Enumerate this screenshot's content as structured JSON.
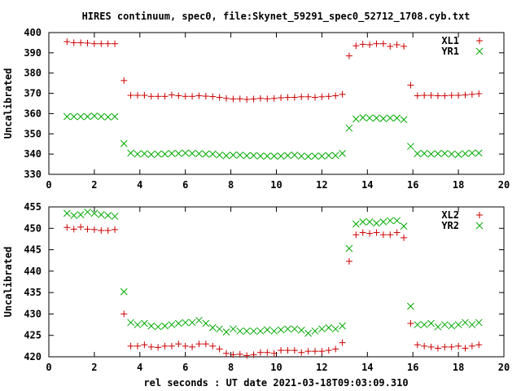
{
  "title": "HIRES continuum, spec0, file:Skynet_59291_spec0_52712_1708.cyb.txt",
  "chart_data": [
    {
      "type": "scatter",
      "ylabel": "Uncalibrated",
      "xlim": [
        0,
        20
      ],
      "ylim": [
        330,
        400
      ],
      "xticks": [
        0,
        2,
        4,
        6,
        8,
        10,
        12,
        14,
        16,
        18,
        20
      ],
      "yticks": [
        330,
        340,
        350,
        360,
        370,
        380,
        390,
        400
      ],
      "legend_position": "top-right",
      "x": [
        0.8,
        1.1,
        1.4,
        1.7,
        2.0,
        2.3,
        2.6,
        2.9,
        3.3,
        3.6,
        3.9,
        4.2,
        4.5,
        4.8,
        5.1,
        5.4,
        5.7,
        6.0,
        6.3,
        6.6,
        6.9,
        7.2,
        7.5,
        7.8,
        8.1,
        8.4,
        8.7,
        9.0,
        9.3,
        9.6,
        9.9,
        10.2,
        10.5,
        10.8,
        11.1,
        11.4,
        11.7,
        12.0,
        12.3,
        12.6,
        12.9,
        13.2,
        13.5,
        13.8,
        14.1,
        14.4,
        14.7,
        15.0,
        15.3,
        15.6,
        15.9,
        16.2,
        16.5,
        16.8,
        17.1,
        17.4,
        17.7,
        18.0,
        18.3,
        18.6,
        18.9
      ],
      "series": [
        {
          "name": "XL1",
          "marker": "plus",
          "color": "#cc0000",
          "values": [
            395.5,
            395.0,
            395.0,
            394.8,
            394.5,
            394.5,
            394.5,
            394.5,
            376.3,
            369.0,
            369.0,
            369.0,
            368.5,
            368.5,
            368.5,
            369.2,
            368.8,
            368.5,
            368.5,
            368.8,
            368.6,
            368.4,
            368.0,
            367.5,
            367.2,
            367.3,
            367.0,
            367.2,
            367.5,
            367.3,
            367.5,
            367.8,
            368.0,
            368.0,
            368.3,
            368.3,
            368.0,
            368.3,
            368.5,
            368.8,
            369.5,
            388.5,
            393.5,
            394.2,
            394.0,
            394.5,
            394.5,
            393.2,
            394.0,
            393.2,
            374.0,
            368.8,
            369.0,
            369.0,
            368.8,
            368.8,
            369.0,
            369.0,
            369.2,
            369.5,
            369.8
          ]
        },
        {
          "name": "YR1",
          "marker": "cross",
          "color": "#00aa00",
          "values": [
            358.5,
            358.5,
            358.5,
            358.5,
            358.8,
            358.5,
            358.3,
            358.5,
            345.2,
            340.5,
            340.0,
            340.2,
            339.8,
            340.0,
            340.0,
            340.3,
            340.3,
            340.5,
            340.3,
            340.2,
            340.0,
            340.0,
            339.5,
            339.2,
            339.5,
            339.5,
            339.2,
            339.3,
            339.0,
            339.0,
            339.0,
            339.0,
            339.3,
            339.5,
            339.0,
            338.8,
            339.0,
            339.0,
            339.3,
            339.3,
            340.3,
            352.8,
            357.3,
            358.0,
            357.8,
            357.8,
            357.5,
            357.8,
            357.8,
            357.0,
            343.8,
            340.2,
            340.3,
            340.0,
            340.2,
            340.3,
            340.0,
            339.8,
            340.2,
            340.5,
            340.5
          ]
        }
      ]
    },
    {
      "type": "scatter",
      "xlabel": "rel seconds : UT date 2021-03-18T09:03:09.310",
      "ylabel": "Uncalibrated",
      "xlim": [
        0,
        20
      ],
      "ylim": [
        420,
        455
      ],
      "xticks": [
        0,
        2,
        4,
        6,
        8,
        10,
        12,
        14,
        16,
        18,
        20
      ],
      "yticks": [
        420,
        425,
        430,
        435,
        440,
        445,
        450,
        455
      ],
      "legend_position": "top-right",
      "x": [
        0.8,
        1.1,
        1.4,
        1.7,
        2.0,
        2.3,
        2.6,
        2.9,
        3.3,
        3.6,
        3.9,
        4.2,
        4.5,
        4.8,
        5.1,
        5.4,
        5.7,
        6.0,
        6.3,
        6.6,
        6.9,
        7.2,
        7.5,
        7.8,
        8.1,
        8.4,
        8.7,
        9.0,
        9.3,
        9.6,
        9.9,
        10.2,
        10.5,
        10.8,
        11.1,
        11.4,
        11.7,
        12.0,
        12.3,
        12.6,
        12.9,
        13.2,
        13.5,
        13.8,
        14.1,
        14.4,
        14.7,
        15.0,
        15.3,
        15.6,
        15.9,
        16.2,
        16.5,
        16.8,
        17.1,
        17.4,
        17.7,
        18.0,
        18.3,
        18.6,
        18.9
      ],
      "series": [
        {
          "name": "XL2",
          "marker": "plus",
          "color": "#cc0000",
          "values": [
            450.2,
            449.8,
            450.3,
            449.8,
            449.7,
            449.5,
            449.5,
            449.7,
            430.0,
            422.5,
            422.5,
            422.8,
            422.3,
            422.2,
            422.5,
            422.5,
            423.0,
            422.5,
            422.3,
            423.0,
            423.0,
            422.5,
            421.8,
            420.8,
            420.5,
            420.6,
            420.3,
            420.5,
            421.0,
            421.0,
            420.8,
            421.5,
            421.5,
            421.5,
            421.0,
            421.3,
            421.3,
            421.3,
            421.5,
            421.8,
            423.3,
            442.3,
            448.5,
            449.0,
            448.8,
            449.0,
            448.5,
            448.5,
            449.0,
            447.8,
            427.8,
            422.8,
            422.5,
            422.3,
            422.0,
            422.3,
            422.3,
            422.5,
            422.0,
            422.5,
            422.8
          ]
        },
        {
          "name": "YR2",
          "marker": "cross",
          "color": "#00aa00",
          "values": [
            453.5,
            453.0,
            453.2,
            453.8,
            453.5,
            453.2,
            453.0,
            452.8,
            435.2,
            428.0,
            427.5,
            427.8,
            427.2,
            427.0,
            427.2,
            427.5,
            427.8,
            428.0,
            428.0,
            428.5,
            427.8,
            426.8,
            426.5,
            425.8,
            426.5,
            426.0,
            426.0,
            426.0,
            426.0,
            426.3,
            426.0,
            426.3,
            426.5,
            426.5,
            426.2,
            425.5,
            426.0,
            426.5,
            426.8,
            426.5,
            427.2,
            445.3,
            451.0,
            451.5,
            451.5,
            451.2,
            451.5,
            451.8,
            451.8,
            450.5,
            431.8,
            427.5,
            427.5,
            427.8,
            427.0,
            427.5,
            427.2,
            427.5,
            428.0,
            427.5,
            428.0
          ]
        }
      ]
    }
  ]
}
